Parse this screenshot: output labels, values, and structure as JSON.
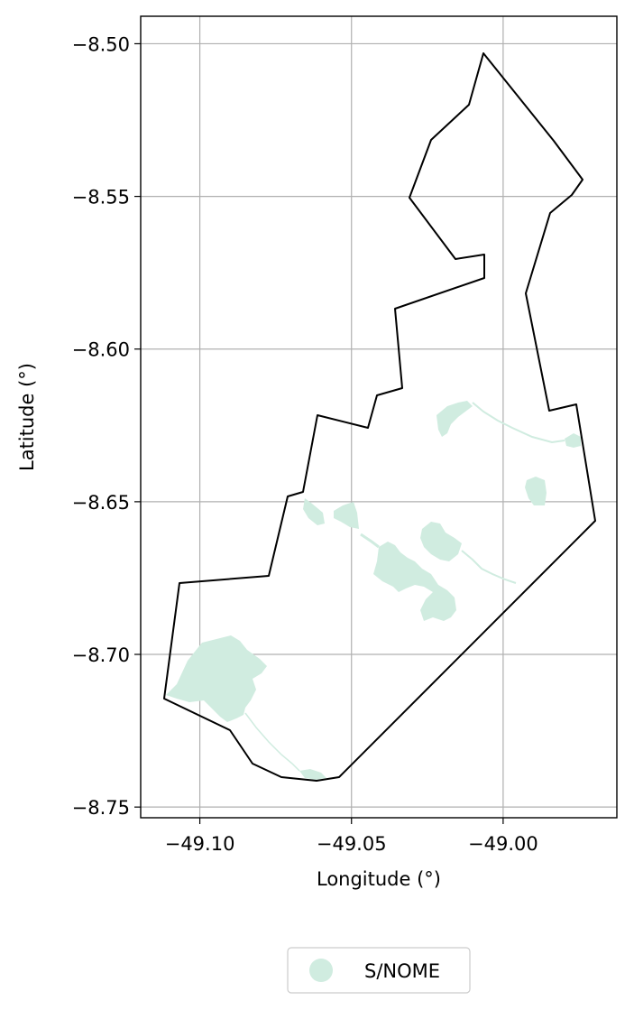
{
  "map": {
    "xlabel": "Longitude (°)",
    "ylabel": "Latitude (°)",
    "xlim": [
      -49.1195,
      -48.9625
    ],
    "ylim": [
      -8.7535,
      -8.491
    ],
    "grid": true,
    "x_ticks": [
      {
        "value": -49.1,
        "label": "−49.10"
      },
      {
        "value": -49.05,
        "label": "−49.05"
      },
      {
        "value": -49.0,
        "label": "−49.00"
      }
    ],
    "y_ticks": [
      {
        "value": -8.5,
        "label": "−8.50"
      },
      {
        "value": -8.55,
        "label": "−8.55"
      },
      {
        "value": -8.6,
        "label": "−8.60"
      },
      {
        "value": -8.65,
        "label": "−8.65"
      },
      {
        "value": -8.7,
        "label": "−8.70"
      },
      {
        "value": -8.75,
        "label": "−8.75"
      }
    ],
    "boundary_color": "#000000",
    "fill_color": "#d0ece0",
    "legend": {
      "placement": "bottom-center",
      "entries": [
        {
          "label": "S/NOME",
          "color": "#d0ece0"
        }
      ]
    }
  }
}
